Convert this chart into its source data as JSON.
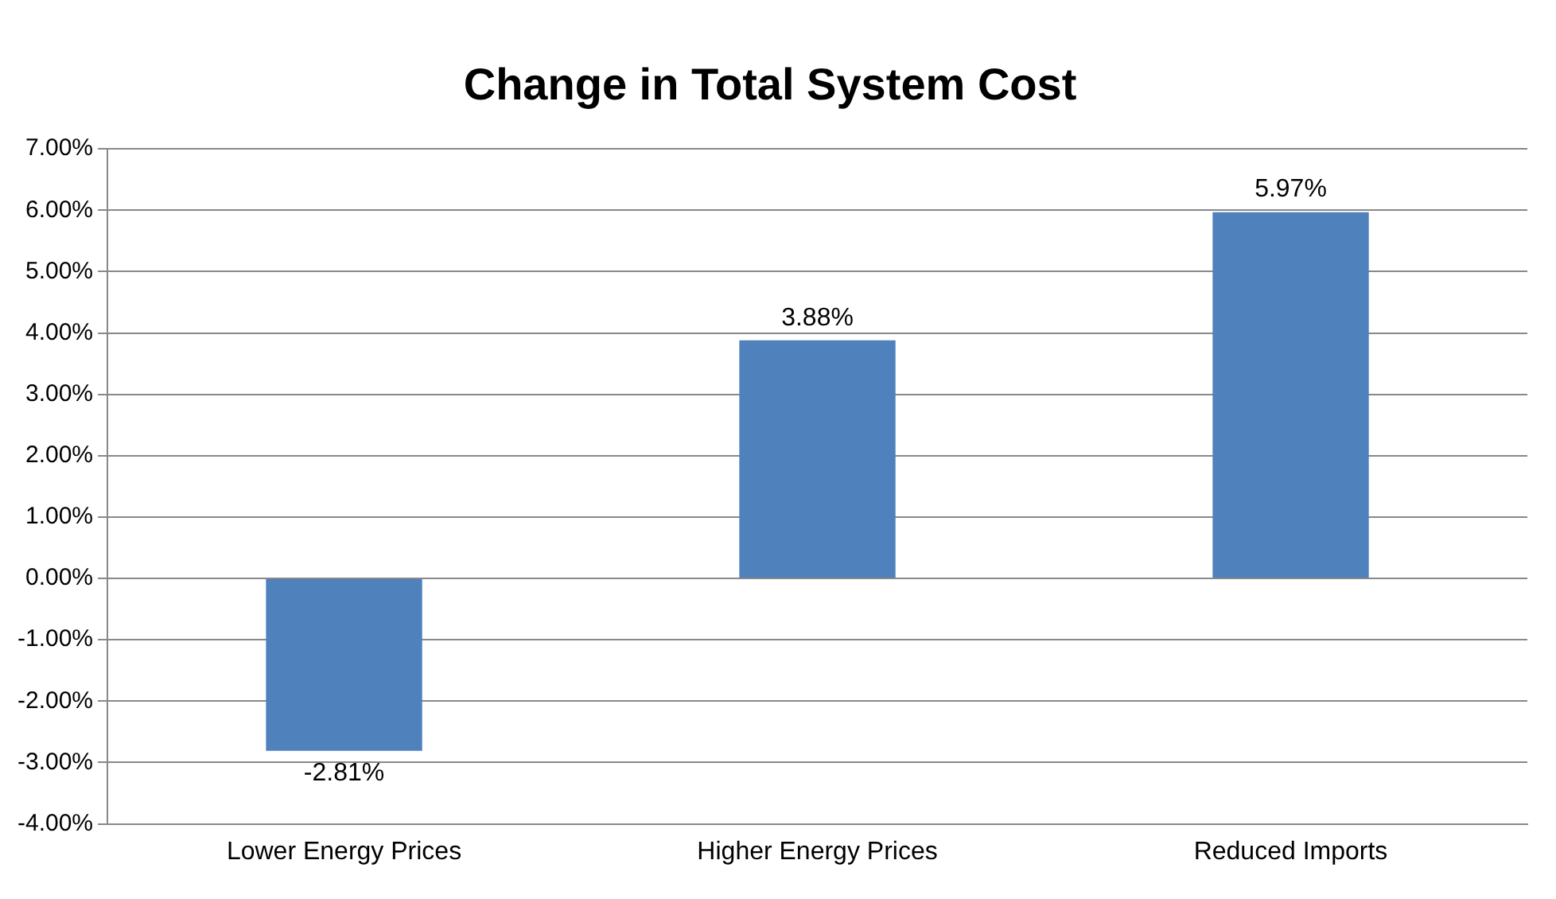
{
  "chart_data": {
    "type": "bar",
    "title": "Change in Total System Cost",
    "categories": [
      "Lower Energy Prices",
      "Higher Energy Prices",
      "Reduced Imports"
    ],
    "values": [
      -2.81,
      3.88,
      5.97
    ],
    "color": "#4f81bd",
    "value_labels": [
      "-2.81%",
      "3.88%",
      "5.97%"
    ],
    "ylim": [
      -4,
      7
    ],
    "yticks": [
      {
        "value": -4,
        "label": "-4.00%"
      },
      {
        "value": -3,
        "label": "-3.00%"
      },
      {
        "value": -2,
        "label": "-2.00%"
      },
      {
        "value": -1,
        "label": "-1.00%"
      },
      {
        "value": 0,
        "label": "0.00%"
      },
      {
        "value": 1,
        "label": "1.00%"
      },
      {
        "value": 2,
        "label": "2.00%"
      },
      {
        "value": 3,
        "label": "3.00%"
      },
      {
        "value": 4,
        "label": "4.00%"
      },
      {
        "value": 5,
        "label": "5.00%"
      },
      {
        "value": 6,
        "label": "6.00%"
      },
      {
        "value": 7,
        "label": "7.00%"
      }
    ],
    "grid": "y",
    "legend": false
  }
}
